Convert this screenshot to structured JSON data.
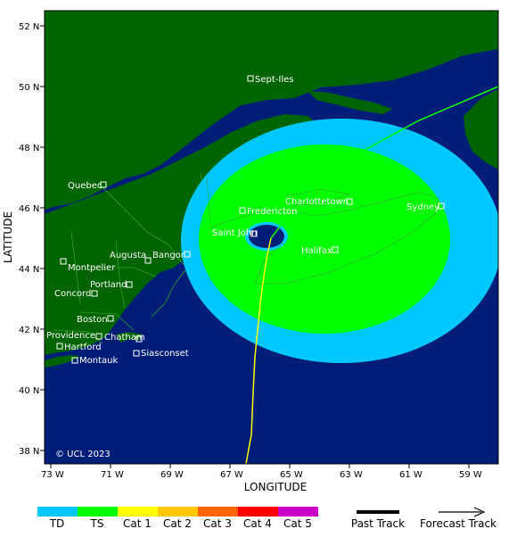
{
  "map": {
    "copyright": "© UCL 2023",
    "axis_titles": {
      "x": "LONGITUDE",
      "y": "LATITUDE"
    },
    "lon_ticks": [
      "73 W",
      "71 W",
      "69 W",
      "67 W",
      "65 W",
      "63 W",
      "61 W",
      "59 W"
    ],
    "lat_ticks": [
      "52 N",
      "50 N",
      "48 N",
      "46 N",
      "44 N",
      "42 N",
      "40 N",
      "38 N"
    ],
    "cities": [
      "Sept-Iles",
      "Quebec",
      "Fredericton",
      "Charlottetown",
      "Sydney",
      "Saint John",
      "Halifax",
      "Augusta",
      "Bangor",
      "Montpelier",
      "Portland",
      "Concord",
      "Boston",
      "Providence",
      "Chatham",
      "Hartford",
      "Siasconset",
      "Montauk"
    ],
    "colors": {
      "ocean": "#001e78",
      "land": "#006400",
      "td": "#00c8ff",
      "ts": "#00ff00",
      "past_track": "#ffff00",
      "forecast_track": "#00ff00"
    }
  },
  "legend": {
    "categories": [
      {
        "label": "TD",
        "color": "#00c8ff"
      },
      {
        "label": "TS",
        "color": "#00ff00"
      },
      {
        "label": "Cat 1",
        "color": "#ffff00"
      },
      {
        "label": "Cat 2",
        "color": "#ffc800"
      },
      {
        "label": "Cat 3",
        "color": "#ff6400"
      },
      {
        "label": "Cat 4",
        "color": "#ff0000"
      },
      {
        "label": "Cat 5",
        "color": "#c800c8"
      }
    ],
    "past_track": "Past Track",
    "forecast_track": "Forecast Track"
  }
}
